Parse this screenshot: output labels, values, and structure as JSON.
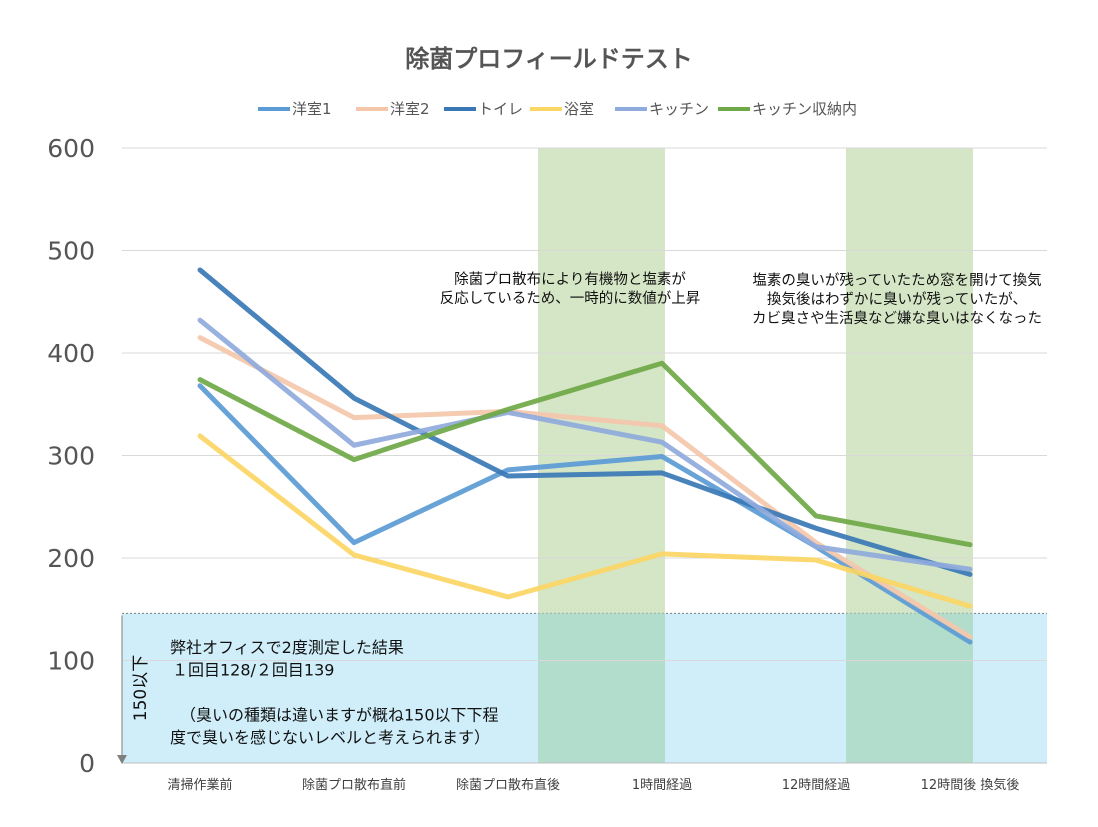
{
  "chart_data": {
    "type": "line",
    "title": "除菌プロフィールドテスト",
    "categories": [
      "清掃作業前",
      "除菌プロ散布直前",
      "除菌プロ散布直後",
      "1時間経過",
      "12時間経過",
      "12時間後 換気後"
    ],
    "y_ticks": [
      "0",
      "100",
      "200",
      "300",
      "400",
      "500",
      "600"
    ],
    "ylim": [
      0,
      600
    ],
    "grid": true,
    "legend_position": "top",
    "series": [
      {
        "name": "洋室1",
        "color": "#5b9bd5",
        "values": [
          368,
          215,
          286,
          299,
          211,
          118
        ]
      },
      {
        "name": "洋室2",
        "color": "#f4c7ab",
        "values": [
          415,
          337,
          343,
          329,
          215,
          123
        ]
      },
      {
        "name": "トイレ",
        "color": "#3a78b5",
        "values": [
          481,
          356,
          280,
          283,
          229,
          184
        ]
      },
      {
        "name": "浴室",
        "color": "#fbd664",
        "values": [
          319,
          203,
          162,
          204,
          198,
          153
        ]
      },
      {
        "name": "キッチン",
        "color": "#8faadc",
        "values": [
          432,
          310,
          342,
          313,
          211,
          189
        ]
      },
      {
        "name": "キッチン収納内",
        "color": "#6fa846",
        "values": [
          374,
          296,
          345,
          390,
          241,
          213
        ]
      }
    ],
    "highlight_bands": [
      {
        "category_index": 2,
        "to_category_index": 3,
        "color": "#d5e6c6"
      },
      {
        "category_index": 4,
        "to_category_index": 5,
        "color": "#d5e6c6"
      }
    ],
    "threshold_region": {
      "value": 146,
      "color": "#cfeef9",
      "axis_label": "150以下"
    },
    "annotations": [
      {
        "lines": [
          "除菌プロ散布により有機物と塩素が",
          "反応しているため、一時的に数値が上昇"
        ]
      },
      {
        "lines": [
          "塩素の臭いが残っていたため窓を開けて換気",
          "換気後はわずかに臭いが残っていたが、",
          "カビ臭さや生活臭など嫌な臭いはなくなった"
        ]
      }
    ],
    "note_lines": [
      "弊社オフィスで2度測定した結果",
      "１回目128/２回目139",
      "",
      "（臭いの種類は違いますが概ね150以下下程",
      "度で臭いを感じないレベルと考えられます）"
    ]
  }
}
